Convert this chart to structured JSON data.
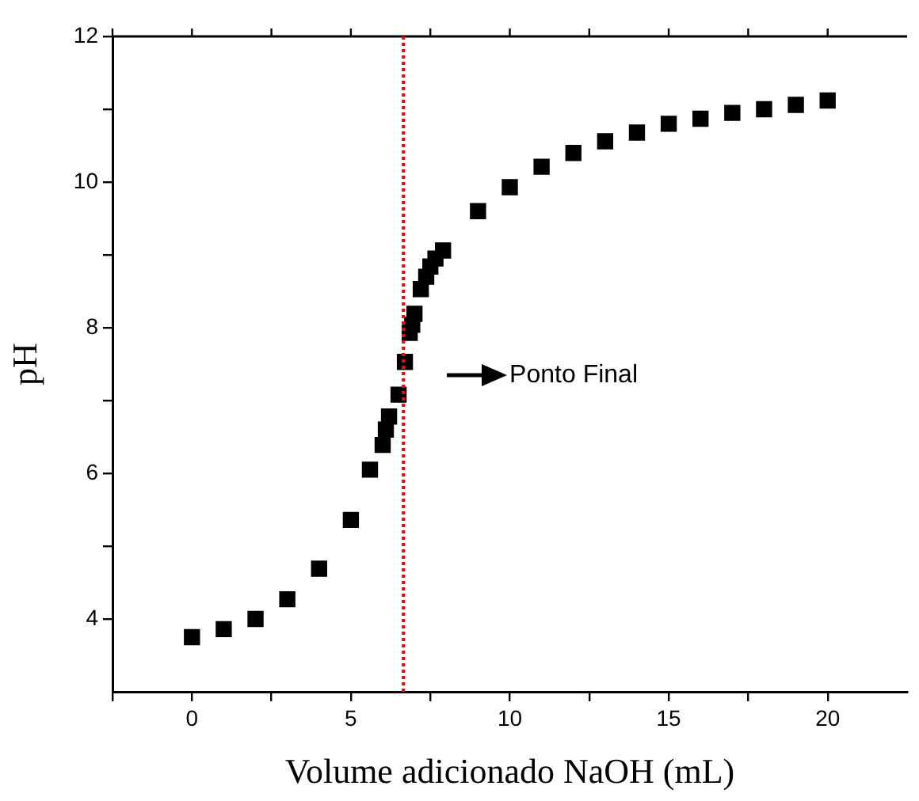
{
  "chart_data": {
    "type": "scatter",
    "xlabel": "Volume adicionado NaOH (mL)",
    "ylabel": "pH",
    "xlim": [
      -2.5,
      22.5
    ],
    "ylim": [
      3,
      12
    ],
    "xticks": [
      {
        "value": -2.5,
        "label": null
      },
      0,
      {
        "value": 2.5,
        "label": null
      },
      5,
      {
        "value": 7.5,
        "label": null
      },
      10,
      {
        "value": 12.5,
        "label": null
      },
      15,
      {
        "value": 17.5,
        "label": null
      },
      20
    ],
    "yticks": [
      4,
      {
        "value": 5,
        "label": null
      },
      6,
      {
        "value": 7,
        "label": null
      },
      8,
      {
        "value": 9,
        "label": null
      },
      10,
      {
        "value": 11,
        "label": null
      },
      12
    ],
    "grid": false,
    "legend": false,
    "marker": "square",
    "series": [
      {
        "color": "#000000",
        "x": [
          0,
          1,
          2,
          3,
          4,
          5,
          5.6,
          6.0,
          6.1,
          6.2,
          6.5,
          6.7,
          6.85,
          6.93,
          7.0,
          7.2,
          7.37,
          7.5,
          7.66,
          7.9,
          9,
          10,
          11,
          12,
          13,
          14,
          15,
          16,
          17,
          18,
          19,
          20
        ],
        "values": [
          3.75,
          3.86,
          4.0,
          4.27,
          4.69,
          5.36,
          6.05,
          6.39,
          6.6,
          6.78,
          7.08,
          7.53,
          7.93,
          8.04,
          8.19,
          8.53,
          8.7,
          8.84,
          8.95,
          9.06,
          9.6,
          9.93,
          10.21,
          10.4,
          10.56,
          10.68,
          10.8,
          10.87,
          10.95,
          11.0,
          11.06,
          11.12
        ]
      }
    ],
    "ref_lines": [
      {
        "axis": "x",
        "value": 6.65,
        "color": "#ff0000",
        "line_style": "dotted"
      }
    ],
    "annotations": [
      "Ponto Final"
    ]
  }
}
